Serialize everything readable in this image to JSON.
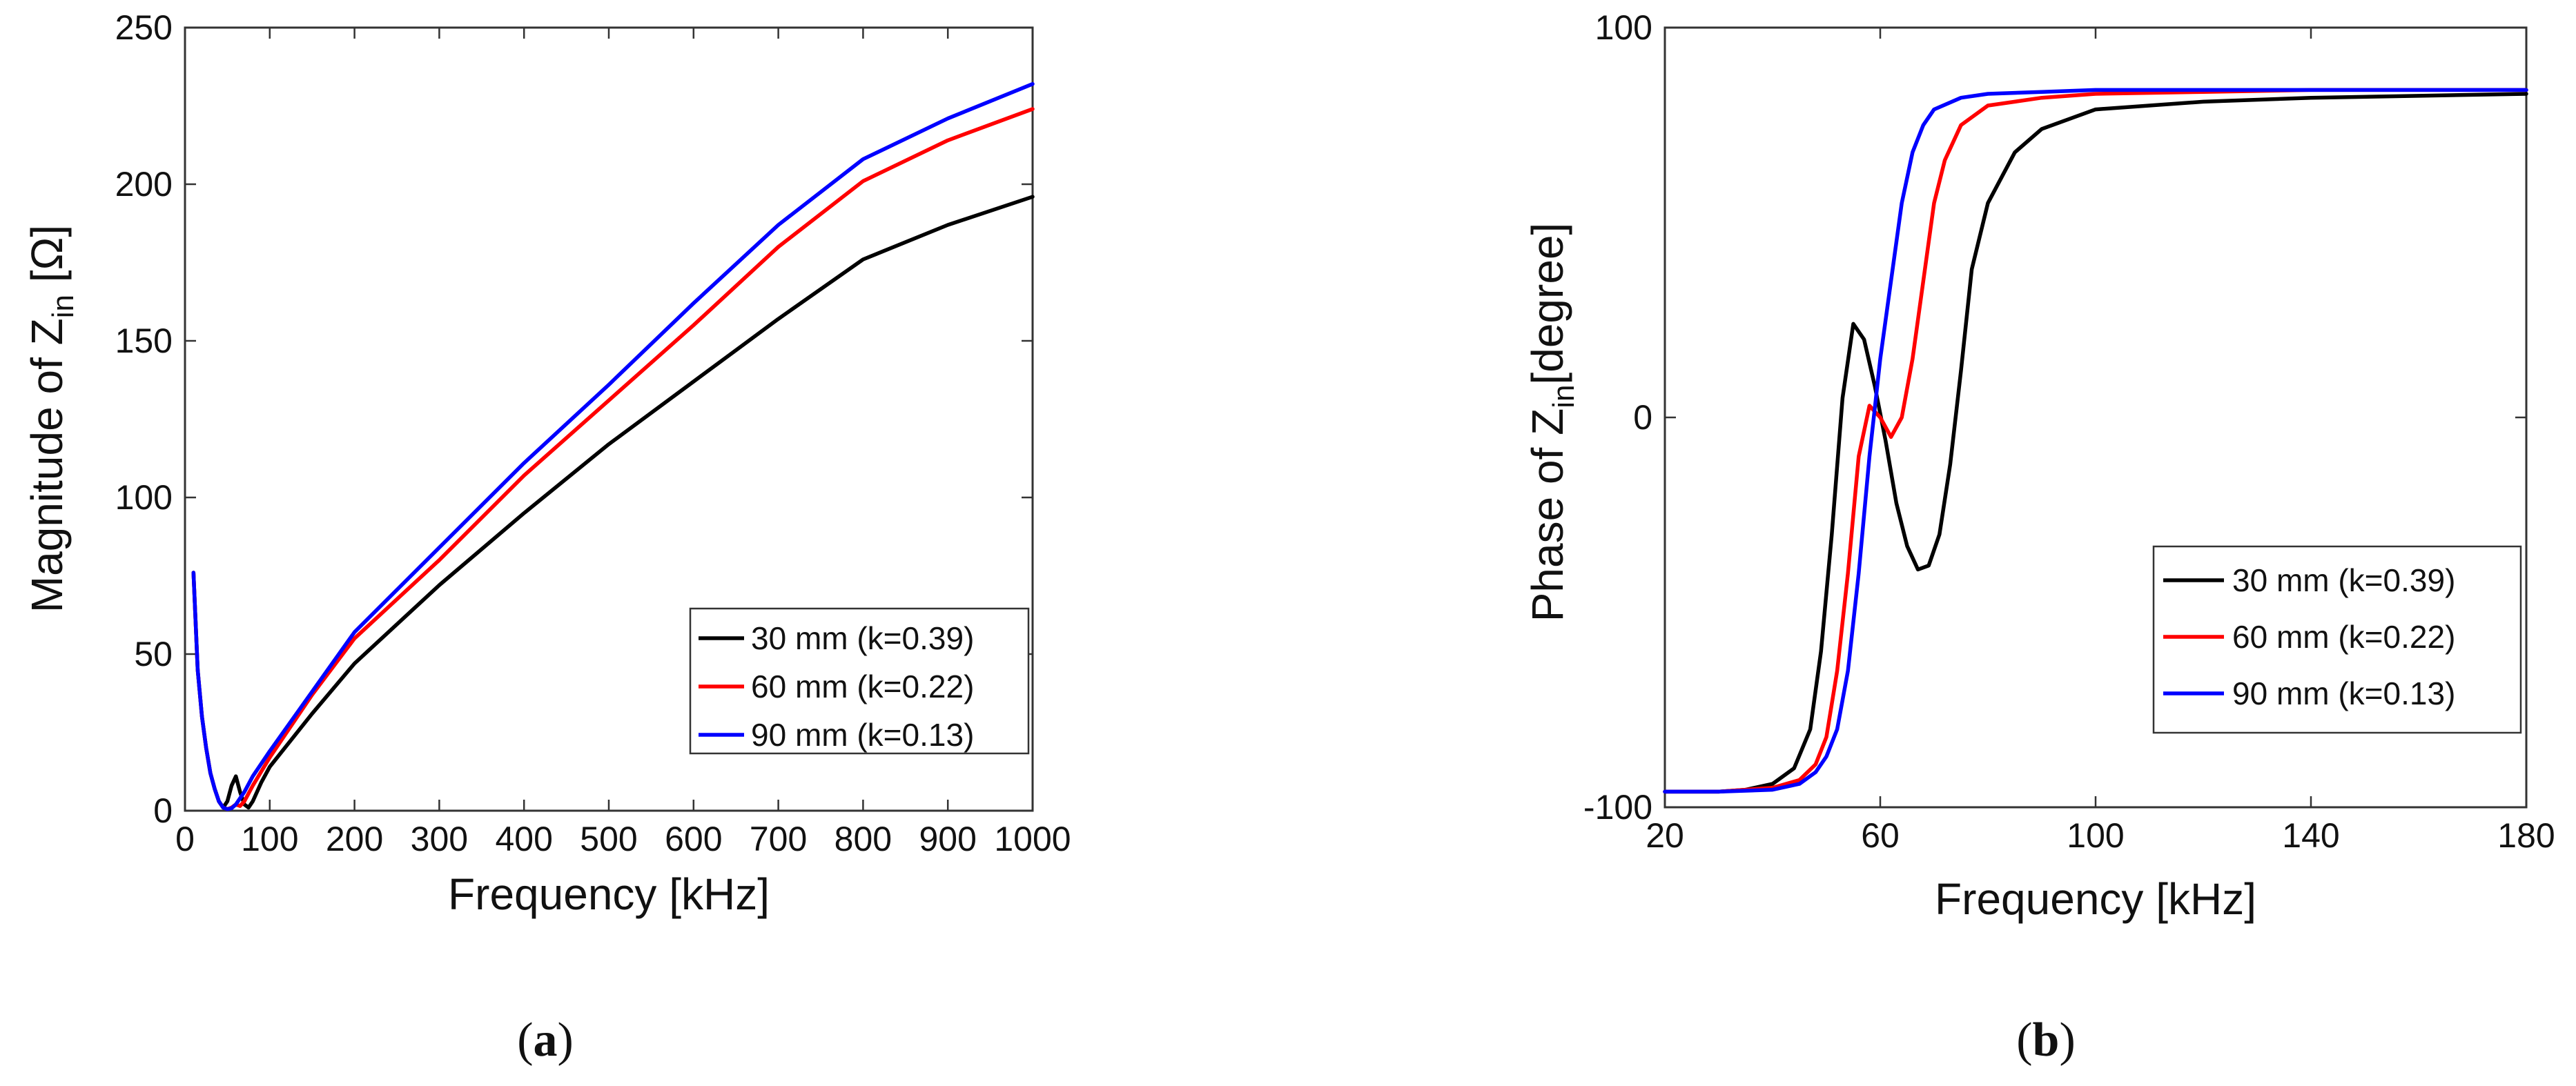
{
  "chart_data": [
    {
      "id": "a",
      "type": "line",
      "panel_label": "a",
      "xlabel": "Frequency [kHz]",
      "ylabel_prefix": "Magnitude of Z",
      "ylabel_sub": "in",
      "ylabel_suffix": " [Ω]",
      "xlim": [
        0,
        1000
      ],
      "ylim": [
        0,
        250
      ],
      "xticks": [
        0,
        100,
        200,
        300,
        400,
        500,
        600,
        700,
        800,
        900,
        1000
      ],
      "yticks": [
        0,
        50,
        100,
        150,
        200,
        250
      ],
      "grid": false,
      "legend_position": "bottom-right",
      "series": [
        {
          "name": "30 mm (k=0.39)",
          "color": "#000000",
          "x": [
            10,
            15,
            20,
            25,
            30,
            35,
            40,
            45,
            50,
            55,
            60,
            65,
            70,
            75,
            80,
            90,
            100,
            150,
            200,
            300,
            400,
            500,
            600,
            700,
            800,
            900,
            1000
          ],
          "y": [
            76,
            45,
            30,
            20,
            12,
            7,
            3,
            1,
            3,
            8,
            11,
            6,
            2,
            1,
            3,
            9,
            14,
            31,
            47,
            72,
            95,
            117,
            137,
            157,
            176,
            187,
            196
          ]
        },
        {
          "name": "60 mm (k=0.22)",
          "color": "#ff0000",
          "x": [
            10,
            15,
            20,
            25,
            30,
            35,
            40,
            45,
            50,
            55,
            60,
            65,
            70,
            80,
            100,
            150,
            200,
            300,
            400,
            500,
            600,
            700,
            800,
            900,
            1000
          ],
          "y": [
            76,
            45,
            30,
            20,
            12,
            7,
            3,
            1,
            0.5,
            1,
            2,
            1.5,
            3,
            8,
            17,
            37,
            55,
            80,
            107,
            131,
            155,
            180,
            201,
            214,
            224
          ]
        },
        {
          "name": "90 mm (k=0.13)",
          "color": "#0000ff",
          "x": [
            10,
            15,
            20,
            25,
            30,
            35,
            40,
            45,
            50,
            55,
            60,
            70,
            80,
            100,
            150,
            200,
            300,
            400,
            500,
            600,
            700,
            800,
            900,
            1000
          ],
          "y": [
            76,
            45,
            30,
            20,
            12,
            7,
            3,
            1,
            0.5,
            0.8,
            2,
            6,
            11,
            19,
            38,
            57,
            84,
            111,
            136,
            162,
            187,
            208,
            221,
            232
          ]
        }
      ]
    },
    {
      "id": "b",
      "type": "line",
      "panel_label": "b",
      "xlabel": "Frequency [kHz]",
      "ylabel_prefix": "Phase of Z",
      "ylabel_sub": "in",
      "ylabel_suffix": "[degree]",
      "xlim": [
        20,
        180
      ],
      "ylim": [
        -100,
        100
      ],
      "xticks": [
        20,
        60,
        100,
        140,
        180
      ],
      "yticks": [
        -100,
        0,
        100
      ],
      "grid": false,
      "legend_position": "bottom-right",
      "series": [
        {
          "name": "30 mm (k=0.39)",
          "color": "#000000",
          "x": [
            20,
            30,
            35,
            40,
            44,
            47,
            49,
            51,
            53,
            55,
            57,
            59,
            61,
            63,
            65,
            67,
            69,
            71,
            73,
            75,
            77,
            80,
            85,
            90,
            100,
            120,
            140,
            160,
            180
          ],
          "y": [
            -96,
            -96,
            -95.5,
            -94,
            -90,
            -80,
            -60,
            -30,
            5,
            24,
            20,
            8,
            -6,
            -22,
            -33,
            -39,
            -38,
            -30,
            -12,
            12,
            38,
            55,
            68,
            74,
            79,
            81,
            82,
            82.5,
            83
          ]
        },
        {
          "name": "60 mm (k=0.22)",
          "color": "#ff0000",
          "x": [
            20,
            30,
            40,
            45,
            48,
            50,
            52,
            54,
            56,
            58,
            60,
            62,
            64,
            66,
            68,
            70,
            72,
            75,
            80,
            90,
            100,
            120,
            140,
            160,
            180
          ],
          "y": [
            -96,
            -96,
            -95,
            -93,
            -89,
            -82,
            -65,
            -40,
            -10,
            3,
            0,
            -5,
            0,
            15,
            35,
            55,
            66,
            75,
            80,
            82,
            83,
            83.5,
            84,
            84,
            84
          ]
        },
        {
          "name": "90 mm (k=0.13)",
          "color": "#0000ff",
          "x": [
            20,
            30,
            40,
            45,
            48,
            50,
            52,
            54,
            56,
            58,
            60,
            62,
            64,
            66,
            68,
            70,
            75,
            80,
            90,
            100,
            120,
            140,
            160,
            180
          ],
          "y": [
            -96,
            -96,
            -95.5,
            -94,
            -91,
            -87,
            -80,
            -65,
            -40,
            -10,
            15,
            35,
            55,
            68,
            75,
            79,
            82,
            83,
            83.5,
            84,
            84,
            84,
            84,
            84
          ]
        }
      ]
    }
  ]
}
